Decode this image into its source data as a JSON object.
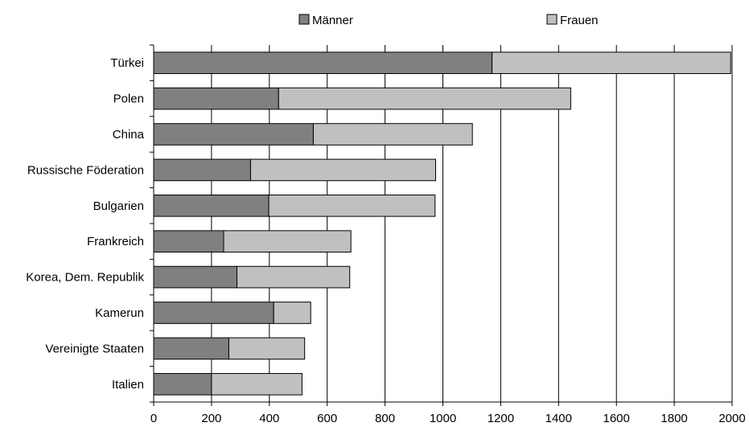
{
  "chart_data": {
    "type": "bar",
    "orientation": "horizontal",
    "stacked": true,
    "categories": [
      "Türkei",
      "Polen",
      "China",
      "Russische Föderation",
      "Bulgarien",
      "Frankreich",
      "Korea, Dem. Republik",
      "Kamerun",
      "Vereinigte Staaten",
      "Italien"
    ],
    "series": [
      {
        "name": "Männer",
        "color": "#808080",
        "values": [
          1170,
          432,
          552,
          335,
          398,
          242,
          288,
          415,
          260,
          200
        ]
      },
      {
        "name": "Frauen",
        "color": "#c0c0c0",
        "values": [
          825,
          1010,
          550,
          640,
          575,
          440,
          390,
          128,
          262,
          313
        ]
      }
    ],
    "xlim": [
      0,
      2000
    ],
    "xticks": [
      "0",
      "200",
      "400",
      "600",
      "800",
      "1000",
      "1200",
      "1400",
      "1600",
      "1800",
      "2000"
    ],
    "xlabel": "",
    "ylabel": "",
    "title": "",
    "grid": "vertical",
    "legend": "top"
  }
}
